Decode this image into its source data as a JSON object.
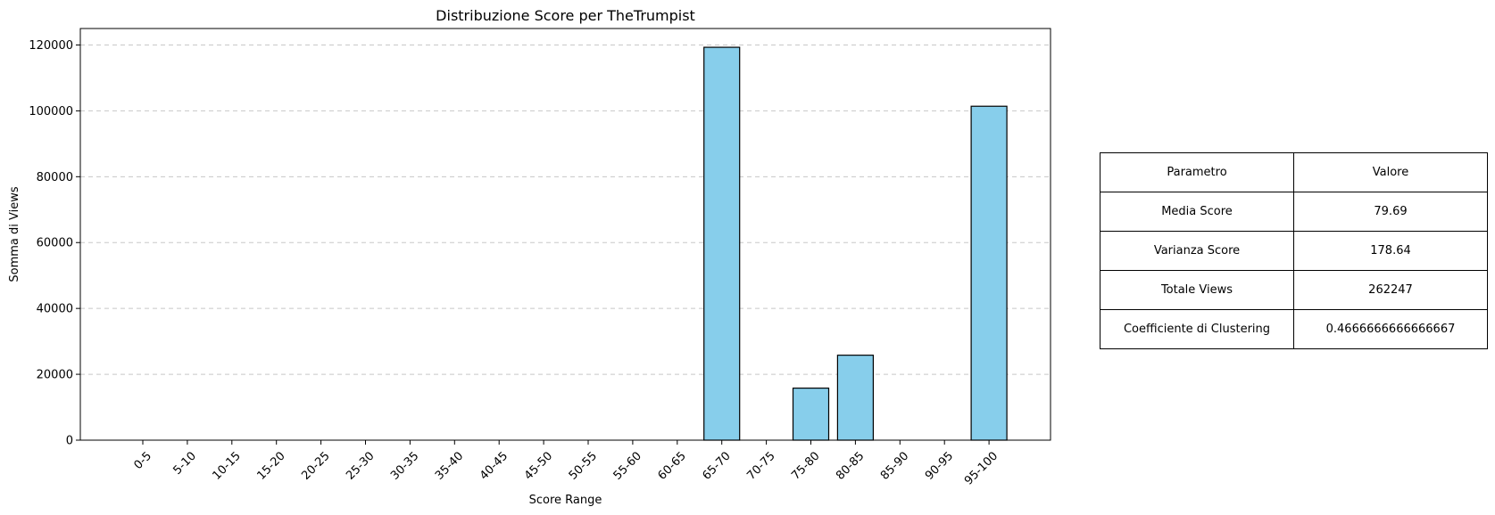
{
  "chart_data": {
    "type": "bar",
    "title": "Distribuzione Score per TheTrumpist",
    "xlabel": "Score Range",
    "ylabel": "Somma di Views",
    "categories": [
      "0-5",
      "5-10",
      "10-15",
      "15-20",
      "20-25",
      "25-30",
      "30-35",
      "35-40",
      "40-45",
      "45-50",
      "50-55",
      "55-60",
      "60-65",
      "65-70",
      "70-75",
      "75-80",
      "80-85",
      "85-90",
      "90-95",
      "95-100"
    ],
    "values": [
      0,
      0,
      0,
      0,
      0,
      0,
      0,
      0,
      0,
      0,
      0,
      0,
      0,
      119300,
      0,
      15800,
      25800,
      0,
      0,
      101400
    ],
    "ylim": [
      0,
      125000
    ],
    "yticks": [
      0,
      20000,
      40000,
      60000,
      80000,
      100000,
      120000
    ],
    "ytick_labels": [
      "0",
      "20000",
      "40000",
      "60000",
      "80000",
      "100000",
      "120000"
    ],
    "grid": "y",
    "bar_color": "#87ceeb",
    "edge_color": "#000000",
    "grid_color": "#c8c8c8"
  },
  "table": {
    "header": {
      "param": "Parametro",
      "value": "Valore"
    },
    "rows": [
      {
        "param": "Media Score",
        "value": "79.69"
      },
      {
        "param": "Varianza Score",
        "value": "178.64"
      },
      {
        "param": "Totale Views",
        "value": "262247"
      },
      {
        "param": "Coefficiente di Clustering",
        "value": "0.4666666666666667"
      }
    ]
  }
}
